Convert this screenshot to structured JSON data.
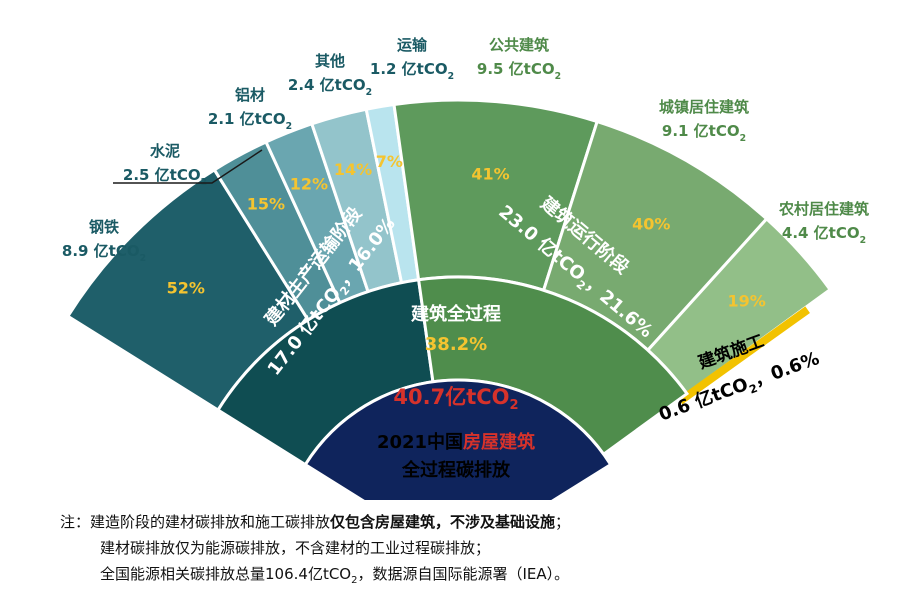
{
  "chart_data": {
    "type": "sunburst",
    "total": {
      "label": "建筑全过程",
      "share": "38.2%",
      "amount_value": "40.7亿tCO",
      "amount_sub": "2",
      "title_prefix": "2021中国",
      "title_highlight": "房屋建筑",
      "title_line2": "全过程碳排放",
      "share_value": 38.2,
      "amount_mt": 40.7
    },
    "stages": [
      {
        "name": "建材生产运输阶段",
        "value_line": "17.0 亿tCO",
        "value_tail": "，16.0%",
        "amount": 17.0,
        "percent": 16.0
      },
      {
        "name": "建筑运行阶段",
        "value_line": "23.0 亿tCO",
        "value_tail": "，21.6%",
        "amount": 23.0,
        "percent": 21.6
      },
      {
        "name": "建筑施工",
        "value_line": "0.6 亿tCO",
        "value_tail": "，0.6%",
        "amount": 0.6,
        "percent": 0.6
      }
    ],
    "segments": [
      {
        "stage": "建材生产运输阶段",
        "name": "钢铁",
        "value_text": "8.9 亿tCO",
        "pct": "52%",
        "amount": 8.9,
        "color": "#1f5f6a"
      },
      {
        "stage": "建材生产运输阶段",
        "name": "水泥",
        "value_text": "2.5 亿tCO",
        "pct": "15%",
        "amount": 2.5,
        "color": "#4f8f98"
      },
      {
        "stage": "建材生产运输阶段",
        "name": "铝材",
        "value_text": "2.1 亿tCO",
        "pct": "12%",
        "amount": 2.1,
        "color": "#6aa6b0"
      },
      {
        "stage": "建材生产运输阶段",
        "name": "其他",
        "value_text": "2.4 亿tCO",
        "pct": "14%",
        "amount": 2.4,
        "color": "#93c4cb"
      },
      {
        "stage": "建材生产运输阶段",
        "name": "运输",
        "value_text": "1.2 亿tCO",
        "pct": "7%",
        "amount": 1.2,
        "color": "#b9e4ee"
      },
      {
        "stage": "建筑运行阶段",
        "name": "公共建筑",
        "value_text": "9.5 亿tCO",
        "pct": "41%",
        "amount": 9.5,
        "color": "#5e9a5c"
      },
      {
        "stage": "建筑运行阶段",
        "name": "城镇居住建筑",
        "value_text": "9.1 亿tCO",
        "pct": "40%",
        "amount": 9.1,
        "color": "#78aa70"
      },
      {
        "stage": "建筑运行阶段",
        "name": "农村居住建筑",
        "value_text": "4.4 亿tCO",
        "pct": "19%",
        "amount": 4.4,
        "color": "#92bf88"
      }
    ],
    "subscript": "2"
  },
  "colors": {
    "core": "#0f245c",
    "materials_stage": "#0f4d52",
    "operation_stage": "#4f8d4c",
    "construction_band": "#f2c200",
    "percent_text": "#f4c430",
    "teal_label": "#1a5a64",
    "green_label": "#4f8a49",
    "red_text": "#d6322b"
  },
  "notes": {
    "prefix": "注：",
    "line1_plain": "建造阶段的建材碳排放和施工碳排放",
    "line1_bold": "仅包含房屋建筑，不涉及基础设施",
    "line1_end": "；",
    "line2": "建材碳排放仅为能源碳排放，不含建材的工业过程碳排放；",
    "line3_a": "全国能源相关碳排放总量106.4亿tCO",
    "line3_sub": "2",
    "line3_b": "，数据源自国际能源署（IEA）。"
  }
}
